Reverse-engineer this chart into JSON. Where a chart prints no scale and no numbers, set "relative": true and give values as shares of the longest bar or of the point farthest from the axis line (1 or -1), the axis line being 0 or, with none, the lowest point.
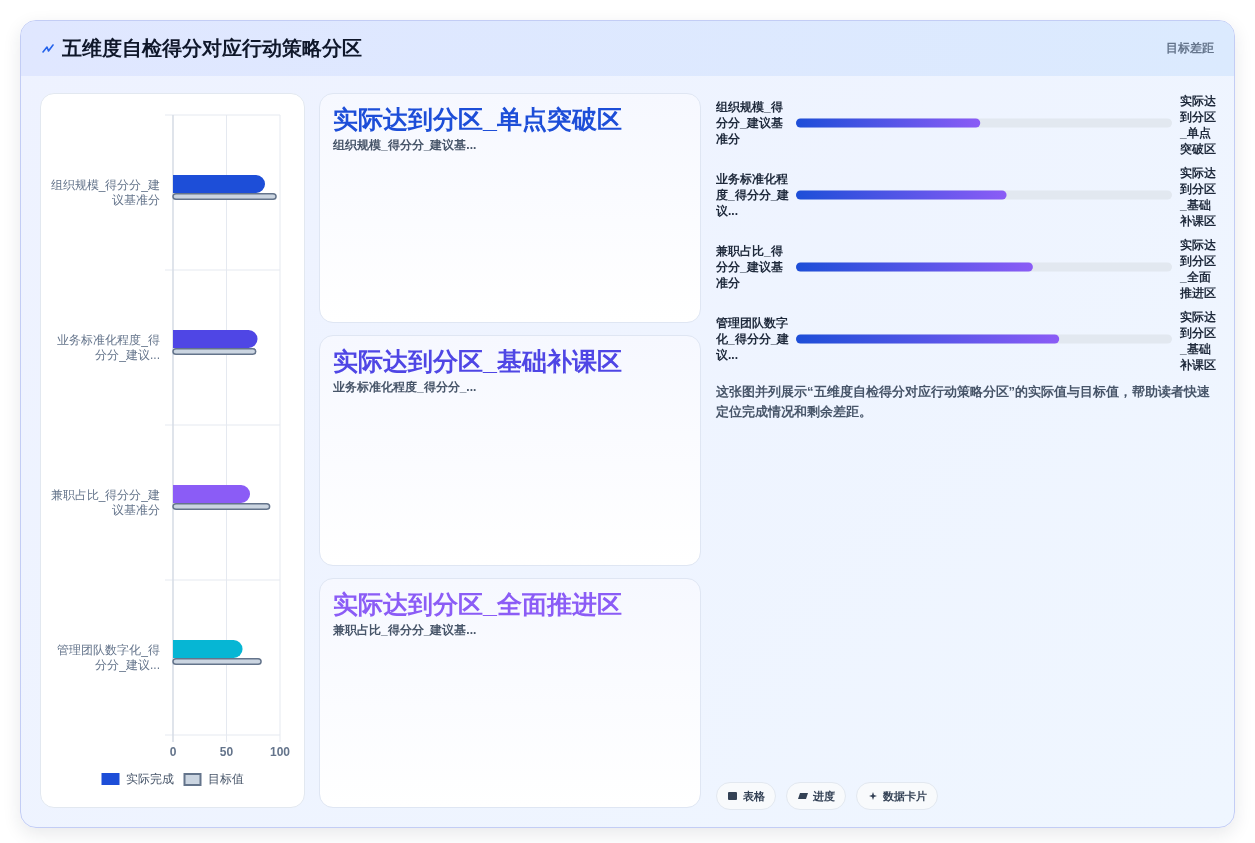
{
  "chart_data": [
    {
      "type": "other",
      "title": "五维度自检得分对应行动策略分区",
      "annotations": [
        "目标差距"
      ]
    },
    {
      "type": "bar",
      "orientation": "horizontal",
      "categories": [
        "组织规模_得分分_建议基准分",
        "业务标准化程度_得分分_建议...",
        "兼职占比_得分分_建议基准分",
        "管理团队数字化_得分分_建议..."
      ],
      "series": [
        {
          "name": "实际完成",
          "color": "#1d4ed8",
          "colors": [
            "#1d4ed8",
            "#4f46e5",
            "#8b5cf6",
            "#06b6d4"
          ],
          "values": [
            86,
            79,
            72,
            65
          ]
        },
        {
          "name": "目标值",
          "color": "#cbd5e1",
          "values": [
            97,
            78,
            91,
            83
          ]
        }
      ],
      "xlim": [
        0,
        100
      ],
      "xticks": [
        0,
        50,
        100
      ],
      "grid": true,
      "legend": "bottom"
    },
    {
      "type": "other",
      "title": "实际达到分区_单点突破区",
      "subtitle": "组织规模_得分分_建议基...",
      "color": "#1d4ed8"
    },
    {
      "type": "other",
      "title": "实际达到分区_基础补课区",
      "subtitle": "业务标准化程度_得分分_...",
      "color": "#4f46e5"
    },
    {
      "type": "other",
      "title": "实际达到分区_全面推进区",
      "subtitle": "兼职占比_得分分_建议基...",
      "color": "#8b5cf6"
    },
    {
      "type": "bar",
      "orientation": "horizontal",
      "relative": true,
      "categories": [
        "组织规模_得分分_建议基准分",
        "业务标准化程度_得分分_建议...",
        "兼职占比_得分分_建议基准分",
        "管理团队数字化_得分分_建议..."
      ],
      "series": [
        {
          "color": "#1d4ed8",
          "values": [
            0.7,
            0.8,
            0.9,
            1
          ]
        }
      ],
      "annotations": [
        "实际达到分区_单点突破区",
        "实际达到分区_基础补课区",
        "实际达到分区_全面推进区",
        "实际达到分区_基础补课区",
        "这张图并列展示“五维度自检得分对应行动策略分区”的实际值与目标值，帮助读者快速定位完成情况和剩余差距。"
      ]
    },
    {
      "type": "other",
      "annotations": [
        "表格",
        "进度",
        "数据卡片"
      ]
    }
  ]
}
